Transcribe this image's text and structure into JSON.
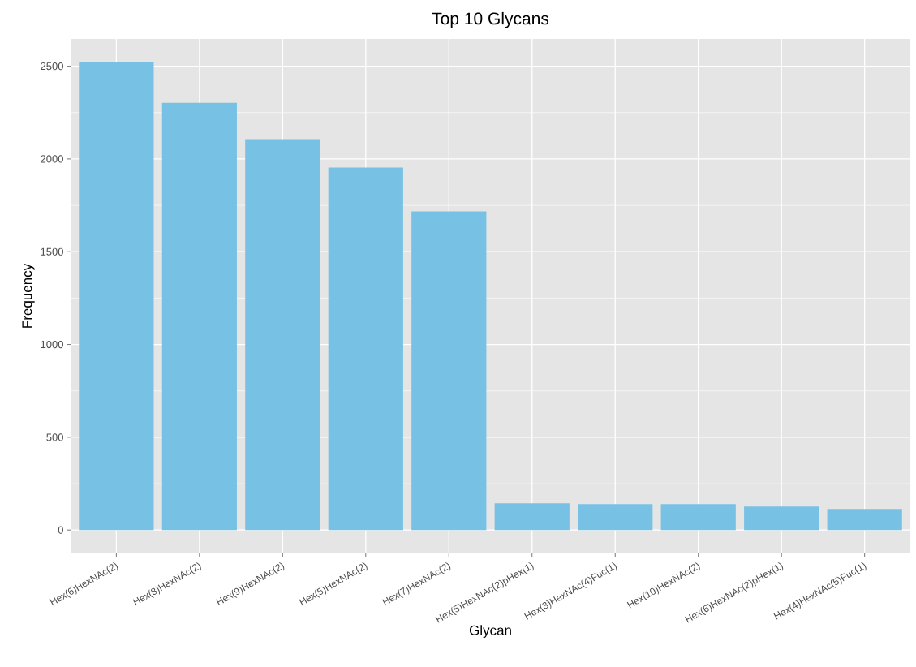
{
  "chart_data": {
    "type": "bar",
    "title": "Top 10 Glycans",
    "xlabel": "Glycan",
    "ylabel": "Frequency",
    "categories": [
      "Hex(6)HexNAc(2)",
      "Hex(8)HexNAc(2)",
      "Hex(9)HexNAc(2)",
      "Hex(5)HexNAc(2)",
      "Hex(7)HexNAc(2)",
      "Hex(5)HexNAc(2)pHex(1)",
      "Hex(3)HexNAc(4)Fuc(1)",
      "Hex(10)HexNAc(2)",
      "Hex(6)HexNAc(2)pHex(1)",
      "Hex(4)HexNAc(5)Fuc(1)"
    ],
    "values": [
      2520,
      2303,
      2107,
      1954,
      1718,
      144,
      140,
      140,
      127,
      114
    ],
    "color": "#77c1e4",
    "ylim": [
      -126,
      2647
    ],
    "yticks": [
      0,
      500,
      1000,
      1500,
      2000,
      2500
    ],
    "grid": true
  }
}
